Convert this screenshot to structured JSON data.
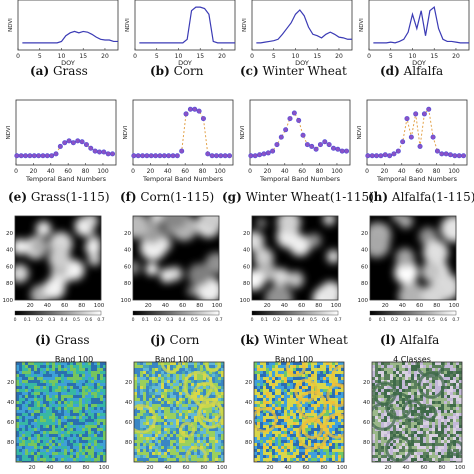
{
  "captions": {
    "row1": [
      {
        "letter": "(a)",
        "name": "Grass"
      },
      {
        "letter": "(b)",
        "name": "Corn"
      },
      {
        "letter": "(c)",
        "name": "Winter Wheat"
      },
      {
        "letter": "(d)",
        "name": "Alfalfa"
      }
    ],
    "row2": [
      {
        "letter": "(e)",
        "name": "Grass(1-115)"
      },
      {
        "letter": "(f)",
        "name": "Corn(1-115)"
      },
      {
        "letter": "(g)",
        "name": "Winter Wheat(1-115)"
      },
      {
        "letter": "(h)",
        "name": "Alfalfa(1-115)"
      }
    ],
    "row3": [
      {
        "letter": "(i)",
        "name": "Grass"
      },
      {
        "letter": "(j)",
        "name": "Corn"
      },
      {
        "letter": "(k)",
        "name": "Winter Wheat"
      },
      {
        "letter": "(l)",
        "name": "Alfalfa"
      }
    ]
  },
  "map_titles": [
    "Band 100",
    "Band 100",
    "Band 100",
    "4 Classes"
  ],
  "colors": {
    "line": "#3b3bb5",
    "marker_fill": "#8a52c6",
    "marker_edge": "#4a4ad8",
    "dashed": "#e3a24a",
    "axis": "#333333"
  },
  "chart_data": [
    {
      "type": "line",
      "panel": "a",
      "xlabel": "DOY",
      "ylabel": "NDVI",
      "xticks": [
        0,
        5,
        10,
        15,
        20
      ],
      "xlim": [
        0,
        23
      ],
      "x": [
        1,
        2,
        3,
        4,
        5,
        6,
        7,
        8,
        9,
        10,
        11,
        12,
        13,
        14,
        15,
        16,
        17,
        18,
        19,
        20,
        21,
        22,
        23
      ],
      "values": [
        0.4,
        0.4,
        0.4,
        0.4,
        0.4,
        0.4,
        0.4,
        0.4,
        0.4,
        0.42,
        0.5,
        0.54,
        0.56,
        0.54,
        0.56,
        0.55,
        0.52,
        0.48,
        0.45,
        0.44,
        0.44,
        0.42,
        0.42
      ]
    },
    {
      "type": "line",
      "panel": "b",
      "xlabel": "DOY",
      "ylabel": "NDVI",
      "xticks": [
        0,
        5,
        10,
        15,
        20
      ],
      "xlim": [
        0,
        23
      ],
      "x": [
        1,
        2,
        3,
        4,
        5,
        6,
        7,
        8,
        9,
        10,
        11,
        12,
        13,
        14,
        15,
        16,
        17,
        18,
        19,
        20,
        21,
        22,
        23
      ],
      "values": [
        0.4,
        0.4,
        0.4,
        0.4,
        0.4,
        0.4,
        0.4,
        0.4,
        0.4,
        0.4,
        0.4,
        0.45,
        0.85,
        0.9,
        0.9,
        0.88,
        0.8,
        0.42,
        0.4,
        0.4,
        0.4,
        0.4,
        0.4
      ]
    },
    {
      "type": "line",
      "panel": "c",
      "xlabel": "DOY",
      "ylabel": "NDVI",
      "xticks": [
        0,
        5,
        10,
        15,
        20
      ],
      "xlim": [
        0,
        23
      ],
      "x": [
        1,
        2,
        3,
        4,
        5,
        6,
        7,
        8,
        9,
        10,
        11,
        12,
        13,
        14,
        15,
        16,
        17,
        18,
        19,
        20,
        21,
        22,
        23
      ],
      "values": [
        0.4,
        0.4,
        0.41,
        0.42,
        0.43,
        0.45,
        0.52,
        0.6,
        0.68,
        0.8,
        0.86,
        0.78,
        0.62,
        0.52,
        0.5,
        0.47,
        0.52,
        0.55,
        0.52,
        0.48,
        0.47,
        0.45,
        0.45
      ]
    },
    {
      "type": "line",
      "panel": "d",
      "xlabel": "DOY",
      "ylabel": "NDVI",
      "xticks": [
        0,
        5,
        10,
        15,
        20
      ],
      "xlim": [
        0,
        23
      ],
      "x": [
        1,
        2,
        3,
        4,
        5,
        6,
        7,
        8,
        9,
        10,
        11,
        12,
        13,
        14,
        15,
        16,
        17,
        18,
        19,
        20,
        21,
        22,
        23
      ],
      "values": [
        0.4,
        0.4,
        0.4,
        0.4,
        0.41,
        0.4,
        0.42,
        0.45,
        0.55,
        0.8,
        0.6,
        0.85,
        0.5,
        0.85,
        0.9,
        0.6,
        0.45,
        0.42,
        0.42,
        0.41,
        0.4,
        0.4,
        0.4
      ]
    },
    {
      "type": "line",
      "panel": "e",
      "xlabel": "Temporal Band Numbers",
      "ylabel": "NDVI",
      "xticks": [
        0,
        20,
        40,
        60,
        80,
        100
      ],
      "xlim": [
        0,
        115
      ],
      "x": [
        1,
        6,
        11,
        16,
        21,
        26,
        31,
        36,
        41,
        46,
        51,
        56,
        61,
        66,
        71,
        76,
        81,
        86,
        91,
        96,
        101,
        106,
        111
      ],
      "values": [
        0.4,
        0.4,
        0.4,
        0.4,
        0.4,
        0.4,
        0.4,
        0.4,
        0.4,
        0.42,
        0.5,
        0.54,
        0.56,
        0.54,
        0.56,
        0.55,
        0.52,
        0.48,
        0.45,
        0.44,
        0.44,
        0.42,
        0.42
      ]
    },
    {
      "type": "line",
      "panel": "f",
      "xlabel": "Temporal Band Numbers",
      "ylabel": "NDVI",
      "xticks": [
        0,
        20,
        40,
        60,
        80,
        100
      ],
      "xlim": [
        0,
        115
      ],
      "x": [
        1,
        6,
        11,
        16,
        21,
        26,
        31,
        36,
        41,
        46,
        51,
        56,
        61,
        66,
        71,
        76,
        81,
        86,
        91,
        96,
        101,
        106,
        111
      ],
      "values": [
        0.4,
        0.4,
        0.4,
        0.4,
        0.4,
        0.4,
        0.4,
        0.4,
        0.4,
        0.4,
        0.4,
        0.45,
        0.85,
        0.9,
        0.9,
        0.88,
        0.8,
        0.42,
        0.4,
        0.4,
        0.4,
        0.4,
        0.4
      ]
    },
    {
      "type": "line",
      "panel": "g",
      "xlabel": "Temporal Band Numbers",
      "ylabel": "NDVI",
      "xticks": [
        0,
        20,
        40,
        60,
        80,
        100
      ],
      "xlim": [
        0,
        115
      ],
      "x": [
        1,
        6,
        11,
        16,
        21,
        26,
        31,
        36,
        41,
        46,
        51,
        56,
        61,
        66,
        71,
        76,
        81,
        86,
        91,
        96,
        101,
        106,
        111
      ],
      "values": [
        0.4,
        0.4,
        0.41,
        0.42,
        0.43,
        0.45,
        0.52,
        0.6,
        0.68,
        0.8,
        0.86,
        0.78,
        0.62,
        0.52,
        0.5,
        0.47,
        0.52,
        0.55,
        0.52,
        0.48,
        0.47,
        0.45,
        0.45
      ]
    },
    {
      "type": "line",
      "panel": "h",
      "xlabel": "Temporal Band Numbers",
      "ylabel": "NDVI",
      "xticks": [
        0,
        20,
        40,
        60,
        80,
        100
      ],
      "xlim": [
        0,
        115
      ],
      "x": [
        1,
        6,
        11,
        16,
        21,
        26,
        31,
        36,
        41,
        46,
        51,
        56,
        61,
        66,
        71,
        76,
        81,
        86,
        91,
        96,
        101,
        106,
        111
      ],
      "values": [
        0.4,
        0.4,
        0.4,
        0.4,
        0.41,
        0.4,
        0.42,
        0.45,
        0.55,
        0.8,
        0.6,
        0.85,
        0.5,
        0.85,
        0.9,
        0.6,
        0.45,
        0.42,
        0.42,
        0.41,
        0.4,
        0.4,
        0.4
      ]
    },
    {
      "type": "heatmap",
      "panel": "i",
      "ticks": [
        "20",
        "40",
        "60",
        "80",
        "100"
      ],
      "colorbar_ticks": [
        "0",
        "0.1",
        "0.2",
        "0.3",
        "0.4",
        "0.5",
        "0.6",
        "0.7"
      ]
    },
    {
      "type": "heatmap",
      "panel": "j",
      "ticks": [
        "20",
        "40",
        "60",
        "80",
        "100"
      ],
      "colorbar_ticks": [
        "0",
        "0.1",
        "0.2",
        "0.3",
        "0.4",
        "0.5",
        "0.6",
        "0.7"
      ]
    },
    {
      "type": "heatmap",
      "panel": "k",
      "ticks": [
        "20",
        "40",
        "60",
        "80",
        "100"
      ],
      "colorbar_ticks": [
        "0",
        "0.1",
        "0.2",
        "0.3",
        "0.4",
        "0.5",
        "0.6",
        "0.7"
      ]
    },
    {
      "type": "heatmap",
      "panel": "l",
      "ticks": [
        "20",
        "40",
        "60",
        "80",
        "100"
      ],
      "colorbar_ticks": [
        "0",
        "0.1",
        "0.2",
        "0.3",
        "0.4",
        "0.5",
        "0.6",
        "0.7"
      ]
    },
    {
      "type": "heatmap",
      "panel": "m",
      "ticks": [
        "20",
        "40",
        "60",
        "80",
        "100"
      ]
    },
    {
      "type": "heatmap",
      "panel": "n",
      "ticks": [
        "20",
        "40",
        "60",
        "80",
        "100"
      ]
    },
    {
      "type": "heatmap",
      "panel": "o",
      "ticks": [
        "20",
        "40",
        "60",
        "80",
        "100"
      ]
    },
    {
      "type": "heatmap",
      "panel": "p",
      "ticks": [
        "20",
        "40",
        "60",
        "80",
        "100"
      ]
    }
  ]
}
